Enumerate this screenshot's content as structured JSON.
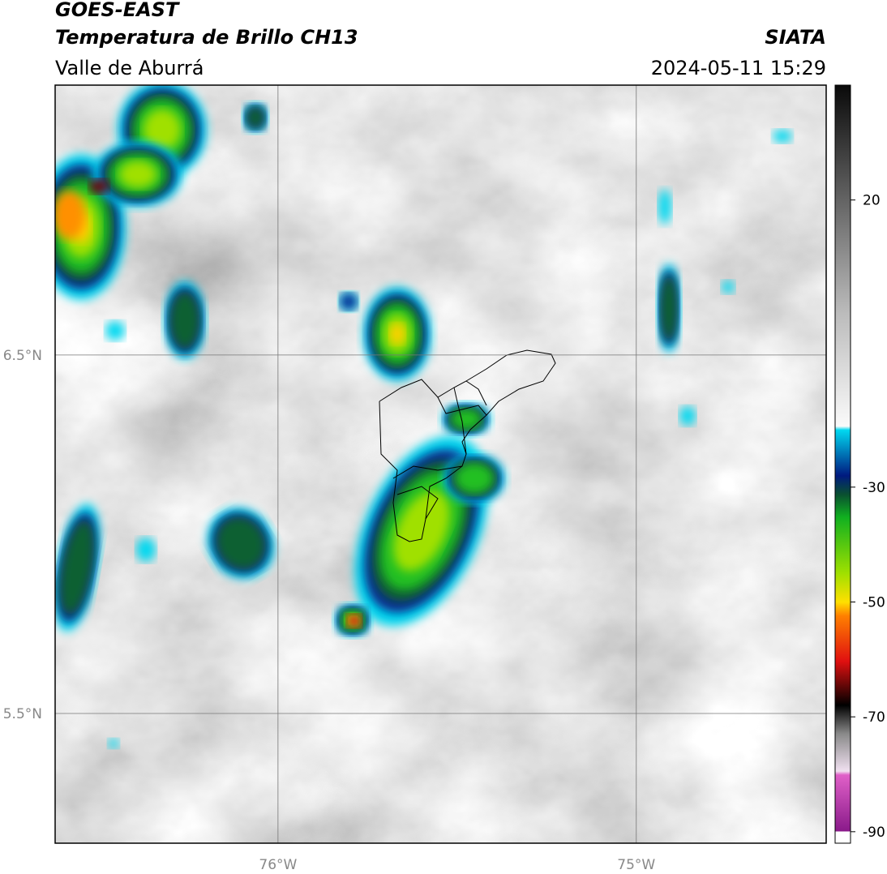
{
  "header": {
    "satellite": "GOES-EAST",
    "product": "Temperatura de Brillo CH13",
    "region": "Valle de Aburrá",
    "source": "SIATA",
    "datetime": "2024-05-11 15:29"
  },
  "map": {
    "xlim": [
      -76.622,
      -74.47
    ],
    "ylim": [
      5.138,
      7.253
    ],
    "xticks": [
      {
        "value": -76,
        "label": "76°W"
      },
      {
        "value": -75,
        "label": "75°W"
      }
    ],
    "yticks": [
      {
        "value": 6.5,
        "label": "6.5°N"
      },
      {
        "value": 5.5,
        "label": "5.5°N"
      }
    ],
    "grid": true
  },
  "colorbar": {
    "lim": [
      -92,
      40
    ],
    "ticks": [
      20,
      -30,
      -50,
      -70,
      -90
    ]
  }
}
